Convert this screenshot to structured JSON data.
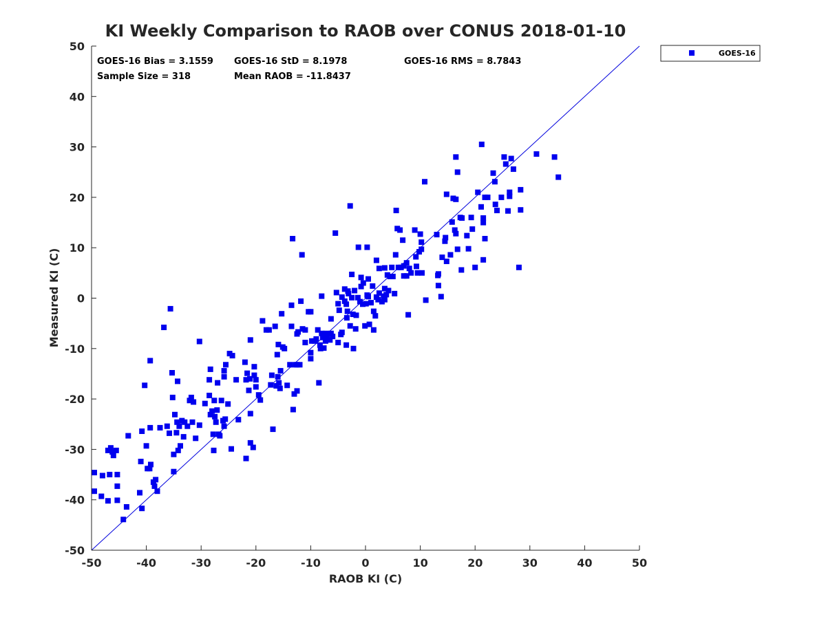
{
  "chart_data": {
    "type": "scatter",
    "title": "KI Weekly Comparison to RAOB over CONUS 2018-01-10",
    "xlabel": "RAOB KI (C)",
    "ylabel": "Measured KI (C)",
    "xlim": [
      -50,
      50
    ],
    "ylim": [
      -50,
      50
    ],
    "xticks": [
      -50,
      -40,
      -30,
      -20,
      -10,
      0,
      10,
      20,
      30,
      40,
      50
    ],
    "yticks": [
      -50,
      -40,
      -30,
      -20,
      -10,
      0,
      10,
      20,
      30,
      40,
      50
    ],
    "grid": false,
    "legend_position": "outside-top-right",
    "reference_line": {
      "name": "1:1 line",
      "from": [
        -50,
        -50
      ],
      "to": [
        50,
        50
      ],
      "color": "#0000dd"
    },
    "stats": {
      "bias": "GOES-16 Bias = 3.1559",
      "std": "GOES-16 StD = 8.1978",
      "rms": "GOES-16 RMS = 8.7843",
      "sample_size": "Sample Size = 318",
      "mean_raob": "Mean RAOB = -11.8437"
    },
    "series": [
      {
        "name": "GOES-16",
        "marker": "square",
        "color": "#0000ee",
        "points": [
          [
            -49.5,
            -34.6
          ],
          [
            -49.5,
            -38.3
          ],
          [
            -48.2,
            -39.3
          ],
          [
            -48.0,
            -35.2
          ],
          [
            -47.0,
            -30.2
          ],
          [
            -47.0,
            -40.2
          ],
          [
            -46.7,
            -35.0
          ],
          [
            -46.5,
            -29.7
          ],
          [
            -46.2,
            -30.5
          ],
          [
            -46.0,
            -31.2
          ],
          [
            -45.5,
            -30.2
          ],
          [
            -45.3,
            -35.0
          ],
          [
            -45.3,
            -37.3
          ],
          [
            -45.3,
            -40.1
          ],
          [
            -44.2,
            -43.9
          ],
          [
            -43.6,
            -41.4
          ],
          [
            -43.3,
            -27.3
          ],
          [
            -41.2,
            -38.6
          ],
          [
            -41.0,
            -32.4
          ],
          [
            -40.8,
            -41.7
          ],
          [
            -40.8,
            -26.4
          ],
          [
            -40.3,
            -17.3
          ],
          [
            -40.0,
            -29.3
          ],
          [
            -39.8,
            -33.8
          ],
          [
            -39.4,
            -33.8
          ],
          [
            -39.3,
            -12.4
          ],
          [
            -39.3,
            -25.7
          ],
          [
            -39.2,
            -33.0
          ],
          [
            -38.7,
            -36.5
          ],
          [
            -38.5,
            -37.3
          ],
          [
            -38.3,
            -36.0
          ],
          [
            -38.0,
            -38.3
          ],
          [
            -37.5,
            -25.7
          ],
          [
            -36.8,
            -5.8
          ],
          [
            -36.2,
            -25.4
          ],
          [
            -35.8,
            -26.8
          ],
          [
            -35.6,
            -2.1
          ],
          [
            -35.3,
            -14.8
          ],
          [
            -35.2,
            -19.7
          ],
          [
            -35.0,
            -31.0
          ],
          [
            -35.0,
            -34.4
          ],
          [
            -34.8,
            -23.1
          ],
          [
            -34.5,
            -26.7
          ],
          [
            -34.4,
            -24.6
          ],
          [
            -34.3,
            -16.5
          ],
          [
            -34.2,
            -30.2
          ],
          [
            -34.0,
            -25.4
          ],
          [
            -33.8,
            -29.3
          ],
          [
            -33.5,
            -24.3
          ],
          [
            -33.2,
            -27.5
          ],
          [
            -33.0,
            -24.6
          ],
          [
            -32.5,
            -25.4
          ],
          [
            -32.1,
            -20.3
          ],
          [
            -31.8,
            -19.7
          ],
          [
            -31.6,
            -24.6
          ],
          [
            -31.4,
            -20.6
          ],
          [
            -31.0,
            -27.8
          ],
          [
            -30.3,
            -8.6
          ],
          [
            -30.3,
            -25.2
          ],
          [
            -29.3,
            -20.9
          ],
          [
            -28.5,
            -16.2
          ],
          [
            -28.5,
            -19.3
          ],
          [
            -28.3,
            -23.1
          ],
          [
            -28.3,
            -14.1
          ],
          [
            -28.0,
            -22.4
          ],
          [
            -27.8,
            -27.0
          ],
          [
            -27.7,
            -30.2
          ],
          [
            -27.6,
            -20.3
          ],
          [
            -27.5,
            -23.5
          ],
          [
            -27.3,
            -24.6
          ],
          [
            -27.1,
            -22.2
          ],
          [
            -27.0,
            -16.8
          ],
          [
            -26.8,
            -27.0
          ],
          [
            -26.6,
            -27.3
          ],
          [
            -26.3,
            -20.3
          ],
          [
            -26.0,
            -24.3
          ],
          [
            -25.8,
            -25.4
          ],
          [
            -25.8,
            -15.6
          ],
          [
            -25.8,
            -14.4
          ],
          [
            -25.6,
            -24.0
          ],
          [
            -25.5,
            -13.2
          ],
          [
            -25.1,
            -21.0
          ],
          [
            -24.8,
            -11.0
          ],
          [
            -24.5,
            -29.9
          ],
          [
            -24.3,
            -11.4
          ],
          [
            -23.6,
            -16.2
          ],
          [
            -23.2,
            -24.1
          ],
          [
            -22.0,
            -12.7
          ],
          [
            -21.8,
            -31.8
          ],
          [
            -21.8,
            -16.2
          ],
          [
            -21.6,
            -14.9
          ],
          [
            -21.3,
            -18.3
          ],
          [
            -21.1,
            -16.0
          ],
          [
            -21.0,
            -22.9
          ],
          [
            -21.0,
            -28.7
          ],
          [
            -21.0,
            -8.3
          ],
          [
            -20.5,
            -29.6
          ],
          [
            -20.3,
            -15.3
          ],
          [
            -20.3,
            -13.6
          ],
          [
            -20.0,
            -16.2
          ],
          [
            -20.0,
            -17.6
          ],
          [
            -19.5,
            -19.2
          ],
          [
            -19.2,
            -20.2
          ],
          [
            -18.8,
            -4.5
          ],
          [
            -18.1,
            -6.3
          ],
          [
            -17.6,
            -6.3
          ],
          [
            -17.3,
            -17.2
          ],
          [
            -17.1,
            -15.3
          ],
          [
            -16.9,
            -26.0
          ],
          [
            -16.5,
            -5.6
          ],
          [
            -16.3,
            -17.4
          ],
          [
            -16.1,
            -11.2
          ],
          [
            -16.0,
            -15.6
          ],
          [
            -15.9,
            -9.2
          ],
          [
            -15.8,
            -16.8
          ],
          [
            -15.6,
            -17.9
          ],
          [
            -15.5,
            -14.4
          ],
          [
            -15.3,
            -3.1
          ],
          [
            -15.1,
            -9.7
          ],
          [
            -14.8,
            -10.0
          ],
          [
            -14.3,
            -17.3
          ],
          [
            -13.8,
            -13.2
          ],
          [
            -13.5,
            -5.6
          ],
          [
            -13.5,
            -1.4
          ],
          [
            -13.3,
            11.8
          ],
          [
            -13.2,
            -22.1
          ],
          [
            -13.0,
            -19.0
          ],
          [
            -12.8,
            -13.2
          ],
          [
            -12.5,
            -7.1
          ],
          [
            -12.5,
            -18.4
          ],
          [
            -12.5,
            -13.2
          ],
          [
            -12.3,
            -6.7
          ],
          [
            -12.0,
            -13.2
          ],
          [
            -11.8,
            -0.6
          ],
          [
            -11.6,
            8.6
          ],
          [
            -11.5,
            -6.1
          ],
          [
            -11.0,
            -8.8
          ],
          [
            -11.0,
            -6.3
          ],
          [
            -10.4,
            -2.7
          ],
          [
            -10.0,
            -2.7
          ],
          [
            -10.0,
            -10.8
          ],
          [
            -10.0,
            -12.0
          ],
          [
            -9.8,
            -8.5
          ],
          [
            -9.3,
            -8.5
          ],
          [
            -9.0,
            -8.1
          ],
          [
            -8.7,
            -6.3
          ],
          [
            -8.5,
            -16.8
          ],
          [
            -8.3,
            -9.3
          ],
          [
            -8.2,
            -10.0
          ],
          [
            -8.0,
            -7.0
          ],
          [
            -8.0,
            0.4
          ],
          [
            -7.8,
            -7.8
          ],
          [
            -7.6,
            -9.9
          ],
          [
            -7.3,
            -8.5
          ],
          [
            -7.2,
            -7.0
          ],
          [
            -7.0,
            -7.5
          ],
          [
            -6.5,
            -8.3
          ],
          [
            -6.3,
            -7.0
          ],
          [
            -6.3,
            -4.1
          ],
          [
            -6.0,
            -7.6
          ],
          [
            -5.5,
            12.9
          ],
          [
            -5.3,
            1.1
          ],
          [
            -5.0,
            -1.1
          ],
          [
            -5.0,
            -8.8
          ],
          [
            -4.8,
            -2.4
          ],
          [
            -4.5,
            -7.2
          ],
          [
            -4.3,
            -6.8
          ],
          [
            -4.3,
            0.2
          ],
          [
            -3.8,
            -0.6
          ],
          [
            -3.8,
            1.8
          ],
          [
            -3.5,
            -1.2
          ],
          [
            -3.5,
            -9.3
          ],
          [
            -3.4,
            -3.9
          ],
          [
            -3.3,
            -2.6
          ],
          [
            -3.2,
            1.4
          ],
          [
            -3.1,
            0.9
          ],
          [
            -2.8,
            -5.5
          ],
          [
            -2.8,
            18.3
          ],
          [
            -2.5,
            0.1
          ],
          [
            -2.5,
            4.7
          ],
          [
            -2.3,
            -3.2
          ],
          [
            -2.2,
            -10.0
          ],
          [
            -2.0,
            1.5
          ],
          [
            -1.8,
            -6.1
          ],
          [
            -1.7,
            -3.4
          ],
          [
            -1.4,
            0.1
          ],
          [
            -1.3,
            10.1
          ],
          [
            -1.0,
            -0.7
          ],
          [
            -0.8,
            2.3
          ],
          [
            -0.8,
            4.1
          ],
          [
            -0.5,
            -1.2
          ],
          [
            -0.4,
            3.0
          ],
          [
            -0.1,
            -5.5
          ],
          [
            0.1,
            -1.1
          ],
          [
            0.3,
            0.6
          ],
          [
            0.5,
            0.3
          ],
          [
            0.5,
            3.8
          ],
          [
            0.3,
            10.1
          ],
          [
            0.7,
            -5.2
          ],
          [
            1.0,
            -0.9
          ],
          [
            1.3,
            2.4
          ],
          [
            1.5,
            -2.6
          ],
          [
            1.8,
            -3.5
          ],
          [
            1.5,
            -6.3
          ],
          [
            2.0,
            0.2
          ],
          [
            2.0,
            7.5
          ],
          [
            2.3,
            -0.3
          ],
          [
            2.5,
            1.0
          ],
          [
            2.5,
            5.9
          ],
          [
            3.0,
            -0.7
          ],
          [
            3.3,
            0.4
          ],
          [
            3.5,
            1.9
          ],
          [
            3.5,
            6.0
          ],
          [
            3.5,
            -0.3
          ],
          [
            3.8,
            0.7
          ],
          [
            4.0,
            4.6
          ],
          [
            4.2,
            1.5
          ],
          [
            4.5,
            4.3
          ],
          [
            4.8,
            6.1
          ],
          [
            5.0,
            4.3
          ],
          [
            5.3,
            0.9
          ],
          [
            5.5,
            8.6
          ],
          [
            5.6,
            17.4
          ],
          [
            5.8,
            13.8
          ],
          [
            6.0,
            6.1
          ],
          [
            6.3,
            13.5
          ],
          [
            6.5,
            6.1
          ],
          [
            6.8,
            11.5
          ],
          [
            7.0,
            4.4
          ],
          [
            7.0,
            6.4
          ],
          [
            7.5,
            7.0
          ],
          [
            7.5,
            4.4
          ],
          [
            7.8,
            -3.3
          ],
          [
            8.0,
            5.9
          ],
          [
            8.3,
            5.0
          ],
          [
            9.0,
            13.5
          ],
          [
            9.2,
            8.2
          ],
          [
            9.3,
            6.3
          ],
          [
            9.5,
            5.0
          ],
          [
            9.8,
            9.2
          ],
          [
            10.0,
            12.7
          ],
          [
            10.2,
            9.7
          ],
          [
            10.2,
            11.1
          ],
          [
            10.3,
            5.0
          ],
          [
            10.8,
            23.1
          ],
          [
            11.0,
            -0.4
          ],
          [
            13.0,
            12.6
          ],
          [
            13.2,
            4.5
          ],
          [
            13.3,
            4.8
          ],
          [
            13.3,
            2.5
          ],
          [
            13.8,
            0.3
          ],
          [
            14.0,
            8.1
          ],
          [
            14.5,
            11.3
          ],
          [
            14.6,
            12.0
          ],
          [
            14.8,
            7.3
          ],
          [
            14.8,
            20.6
          ],
          [
            15.5,
            8.6
          ],
          [
            15.8,
            15.1
          ],
          [
            16.0,
            19.8
          ],
          [
            16.3,
            13.5
          ],
          [
            16.5,
            28.0
          ],
          [
            16.5,
            19.6
          ],
          [
            16.8,
            25.0
          ],
          [
            16.5,
            12.8
          ],
          [
            16.8,
            9.7
          ],
          [
            17.3,
            16.0
          ],
          [
            17.5,
            5.6
          ],
          [
            17.6,
            15.9
          ],
          [
            18.5,
            12.4
          ],
          [
            18.8,
            9.8
          ],
          [
            19.3,
            16.0
          ],
          [
            19.5,
            13.7
          ],
          [
            20.0,
            6.1
          ],
          [
            20.5,
            21.0
          ],
          [
            21.1,
            18.1
          ],
          [
            21.2,
            30.5
          ],
          [
            21.5,
            15.0
          ],
          [
            21.5,
            7.6
          ],
          [
            21.5,
            15.9
          ],
          [
            21.8,
            11.8
          ],
          [
            21.8,
            20.0
          ],
          [
            22.3,
            20.0
          ],
          [
            23.3,
            24.8
          ],
          [
            23.6,
            23.1
          ],
          [
            23.7,
            18.6
          ],
          [
            24.0,
            17.4
          ],
          [
            24.8,
            20.0
          ],
          [
            25.3,
            28.0
          ],
          [
            25.6,
            26.6
          ],
          [
            26.0,
            17.3
          ],
          [
            26.3,
            20.2
          ],
          [
            26.3,
            21.0
          ],
          [
            26.6,
            27.7
          ],
          [
            27.0,
            25.6
          ],
          [
            28.0,
            6.1
          ],
          [
            28.3,
            21.5
          ],
          [
            28.3,
            17.5
          ],
          [
            31.2,
            28.6
          ],
          [
            34.5,
            28.0
          ],
          [
            35.2,
            24.0
          ]
        ]
      }
    ]
  }
}
